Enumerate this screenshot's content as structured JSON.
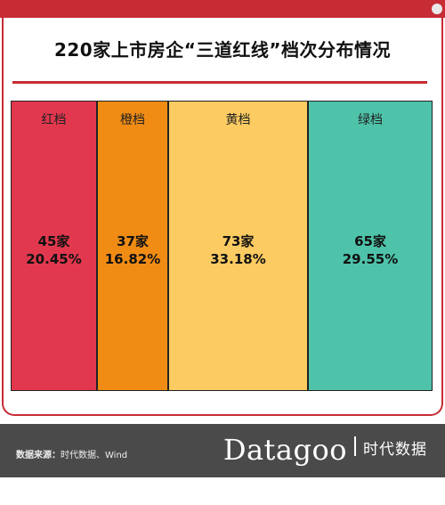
{
  "title": "220家上市房企“三道红线”档次分布情况",
  "chart_data": {
    "type": "table",
    "title": "220家上市房企“三道红线”档次分布情况",
    "total": 220,
    "categories": [
      "红档",
      "橙档",
      "黄档",
      "绿档"
    ],
    "values": [
      45,
      37,
      73,
      65
    ],
    "count_labels": [
      "45家",
      "37家",
      "73家",
      "65家"
    ],
    "percent_labels": [
      "20.45%",
      "16.82%",
      "33.18%",
      "29.55%"
    ],
    "colors": [
      "#e2384e",
      "#f08c14",
      "#fccb61",
      "#4ec3aa"
    ]
  },
  "footer": {
    "source_label": "数据来源：",
    "source_text": "时代数据、Wind",
    "logo_word": "Datagoo",
    "logo_cn": "时代数据"
  }
}
